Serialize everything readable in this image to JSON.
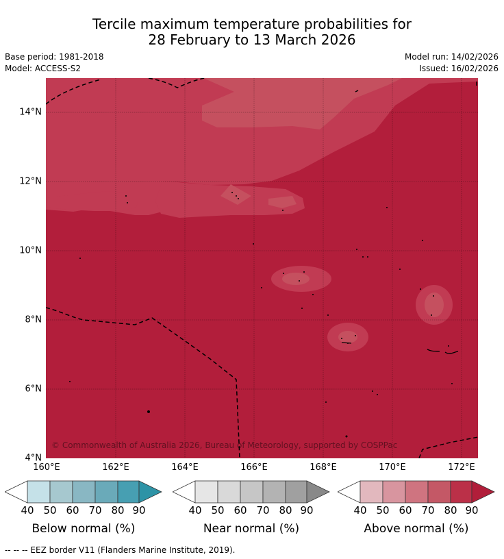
{
  "header": {
    "title_line1": "Tercile maximum temperature probabilities for",
    "title_line2": "28 February to 13 March 2026",
    "base_period": "Base period: 1981-2018",
    "model": "Model: ACCESS-S2",
    "model_run": "Model run: 14/02/2026",
    "issued": "Issued: 16/02/2026"
  },
  "map": {
    "lat_labels": [
      "14°N",
      "12°N",
      "10°N",
      "8°N",
      "6°N",
      "4°N"
    ],
    "lon_labels": [
      "160°E",
      "162°E",
      "164°E",
      "166°E",
      "168°E",
      "170°E",
      "172°E"
    ],
    "lat_range": [
      4,
      15
    ],
    "lon_range": [
      160,
      172.5
    ],
    "copyright": "© Commonwealth of Australia 2026, Bureau of Meteorology, supported by COSPPac",
    "colors": {
      "above_90": "#b11e3a",
      "above_80": "#c03c53",
      "above_70": "#c65360",
      "ocean_bg": "#b21e3b"
    }
  },
  "legends": [
    {
      "caption": "Below normal (%)",
      "ticks": [
        "40",
        "50",
        "60",
        "70",
        "80",
        "90"
      ],
      "colors": [
        "#c5e1e8",
        "#a6c8cf",
        "#89b7c3",
        "#6aaab9",
        "#479fb2",
        "#2d93a6"
      ]
    },
    {
      "caption": "Near normal (%)",
      "ticks": [
        "40",
        "50",
        "60",
        "70",
        "80",
        "90"
      ],
      "colors": [
        "#e6e6e6",
        "#d9d9d9",
        "#c6c6c6",
        "#b3b3b3",
        "#a0a0a0",
        "#898989"
      ]
    },
    {
      "caption": "Above normal (%)",
      "ticks": [
        "40",
        "50",
        "60",
        "70",
        "80",
        "90"
      ],
      "colors": [
        "#e2b8be",
        "#d8959f",
        "#cf7480",
        "#c45866",
        "#bb3048",
        "#b11e3a"
      ]
    }
  ],
  "footer": {
    "eez_note": "--  --  -- EEZ border V11 (Flanders Marine Institute, 2019)."
  }
}
